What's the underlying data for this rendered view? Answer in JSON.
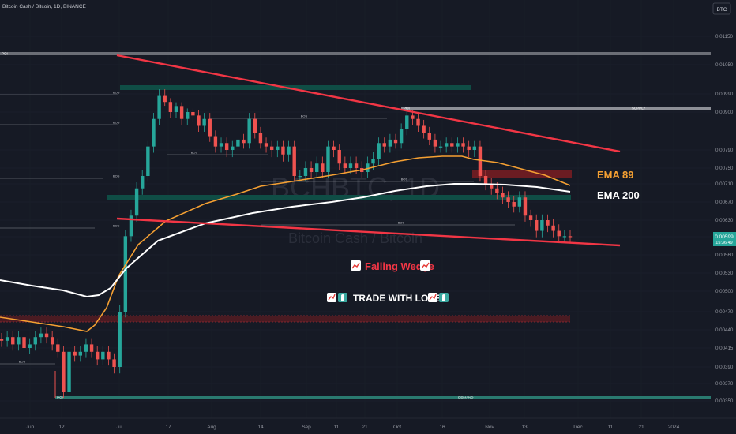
{
  "header": {
    "title": "Bitcoin Cash / Bitcoin, 1D, BINANCE",
    "currency_button": "BTC"
  },
  "watermark": {
    "symbol": "BCHBTC, 1D",
    "name": "Bitcoin Cash / Bitcoin"
  },
  "annotations": {
    "pattern": "Falling Wedge",
    "slogan": "TRADE WITH LOVE"
  },
  "ema_labels": {
    "ema89": "EMA 89",
    "ema200": "EMA 200"
  },
  "price_badge": {
    "value": "0.00599",
    "countdown": "15:36:49"
  },
  "colors": {
    "background": "#161a25",
    "candle_up": "#26a69a",
    "candle_down": "#ef5350",
    "wedge_line": "#f23645",
    "ema89": "#f5a032",
    "ema200": "#ffffff",
    "demand_zone": "#0f4d45",
    "supply_zone": "#6b1c22",
    "poi_line": "#8d8f96",
    "price_badge": "#26a69a"
  },
  "chart_data": {
    "type": "candlestick",
    "symbol": "BCHBTC",
    "timeframe": "1D",
    "exchange": "BINANCE",
    "ylim": [
      0.0034,
      0.0119
    ],
    "y_ticks": [
      "0.01150",
      "0.01050",
      "0.00990",
      "0.00900",
      "0.00790",
      "0.00750",
      "0.00710",
      "0.00670",
      "0.00630",
      "0.00599",
      "0.00560",
      "0.00530",
      "0.00500",
      "0.00470",
      "0.00440",
      "0.00415",
      "0.00390",
      "0.00370",
      "0.00350"
    ],
    "x_ticks": [
      "Jun",
      "12",
      "Jul",
      "17",
      "Aug",
      "14",
      "Sep",
      "11",
      "21",
      "Oct",
      "16",
      "Nov",
      "13",
      "Dec",
      "11",
      "21",
      "2024"
    ],
    "last_price": 0.00599,
    "candles_close_approx": [
      0.00425,
      0.0043,
      0.0042,
      0.0043,
      0.00415,
      0.0042,
      0.0043,
      0.00435,
      0.0043,
      0.0042,
      0.0041,
      0.0036,
      0.0041,
      0.00405,
      0.0041,
      0.0042,
      0.0041,
      0.004,
      0.0041,
      0.004,
      0.0039,
      0.0047,
      0.006,
      0.0064,
      0.007,
      0.0073,
      0.008,
      0.0088,
      0.0098,
      0.0095,
      0.009,
      0.0093,
      0.0088,
      0.009,
      0.0089,
      0.0086,
      0.0088,
      0.0083,
      0.008,
      0.0081,
      0.0079,
      0.008,
      0.0082,
      0.0081,
      0.0088,
      0.0084,
      0.0081,
      0.008,
      0.0079,
      0.008,
      0.0078,
      0.008,
      0.0073,
      0.0073,
      0.0075,
      0.0074,
      0.0076,
      0.0074,
      0.008,
      0.0079,
      0.0076,
      0.0075,
      0.0076,
      0.0075,
      0.0074,
      0.0076,
      0.0077,
      0.0081,
      0.008,
      0.0082,
      0.0081,
      0.0085,
      0.0089,
      0.0088,
      0.0086,
      0.0084,
      0.0082,
      0.008,
      0.008,
      0.0081,
      0.008,
      0.0081,
      0.008,
      0.0079,
      0.008,
      0.0073,
      0.0071,
      0.007,
      0.0069,
      0.0068,
      0.0067,
      0.0066,
      0.0068,
      0.0064,
      0.0063,
      0.0061,
      0.0063,
      0.0062,
      0.0061,
      0.006,
      0.006,
      0.00599
    ],
    "series": [
      {
        "name": "EMA 89"
      },
      {
        "name": "EMA 200"
      }
    ],
    "zones": [
      {
        "kind": "POI",
        "price": 0.011,
        "label": "POI"
      },
      {
        "kind": "demand",
        "from": 0.0098,
        "to": 0.0099,
        "label": ""
      },
      {
        "kind": "POI",
        "price": 0.0091,
        "label": "POI"
      },
      {
        "kind": "supply",
        "price": 0.0091,
        "label": "SUPPLY"
      },
      {
        "kind": "supply",
        "from": 0.0072,
        "to": 0.0074,
        "label": ""
      },
      {
        "kind": "demand",
        "from": 0.0067,
        "to": 0.0068,
        "label": ""
      },
      {
        "kind": "supply",
        "from": 0.0046,
        "to": 0.0047,
        "label": ""
      },
      {
        "kind": "POI",
        "price": 0.00355,
        "label": "POI"
      },
      {
        "kind": "demand",
        "price": 0.00355,
        "label": "DEMAND"
      }
    ],
    "bos_label": "BOS",
    "bos_levels": [
      0.0087,
      0.0078,
      0.007,
      0.0064,
      0.0041
    ],
    "left_level_labels": [
      "BOS",
      "BOS",
      "BOS",
      "BOS"
    ],
    "wedge": {
      "upper": [
        [
          0.01095,
          "Jul"
        ],
        [
          0.008,
          "Dec"
        ]
      ],
      "lower": [
        [
          0.0065,
          "Jul"
        ],
        [
          0.006,
          "Dec"
        ]
      ]
    }
  }
}
